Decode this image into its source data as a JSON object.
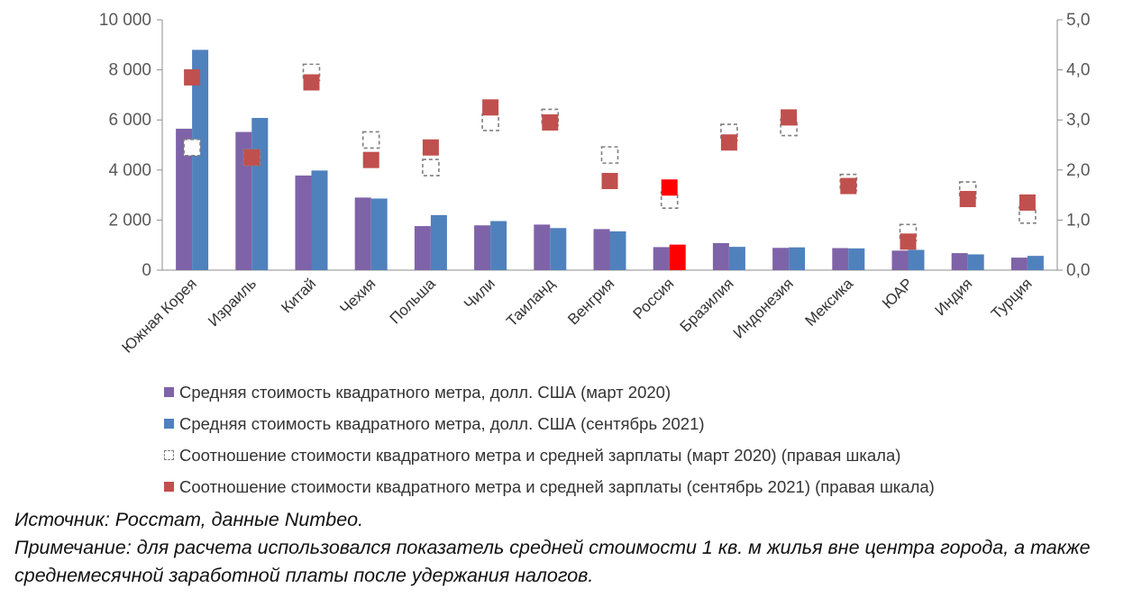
{
  "chart_data": {
    "type": "bar",
    "categories": [
      "Южная Корея",
      "Израиль",
      "Китай",
      "Чехия",
      "Польша",
      "Чили",
      "Таиланд",
      "Венгрия",
      "Россия",
      "Бразилия",
      "Индонезия",
      "Мексика",
      "ЮАР",
      "Индия",
      "Турция"
    ],
    "series": [
      {
        "name": "Средняя стоимость квадратного метра, долл. США (март 2020)",
        "kind": "bar",
        "axis": "left",
        "color": "#7F63A8",
        "values": [
          5650,
          5520,
          3780,
          2900,
          1760,
          1790,
          1820,
          1640,
          920,
          1080,
          890,
          880,
          780,
          680,
          500
        ]
      },
      {
        "name": "Средняя стоимость квадратного метра, долл. США (сентябрь 2021)",
        "kind": "bar",
        "axis": "left",
        "color": "#4F81BD",
        "values": [
          8800,
          6080,
          3980,
          2860,
          2200,
          1960,
          1680,
          1550,
          1020,
          930,
          910,
          870,
          810,
          630,
          570
        ]
      },
      {
        "name": "Соотношение стоимости квадратного метра и средней зарплаты (март 2020) (правая шкала)",
        "kind": "marker-dashed",
        "axis": "right",
        "color": "#7F7F7F",
        "values": [
          2.45,
          2.25,
          3.95,
          2.6,
          2.05,
          2.95,
          3.05,
          2.3,
          1.4,
          2.75,
          2.85,
          1.75,
          0.75,
          1.6,
          1.1
        ]
      },
      {
        "name": "Соотношение стоимости квадратного метра и средней зарплаты (сентябрь 2021) (правая шкала)",
        "kind": "marker-solid",
        "axis": "right",
        "color": "#C0504D",
        "values": [
          3.85,
          2.25,
          3.75,
          2.2,
          2.45,
          3.25,
          2.95,
          1.78,
          1.65,
          2.55,
          3.05,
          1.68,
          0.57,
          1.42,
          1.35
        ]
      }
    ],
    "highlight": {
      "category": "Россия",
      "color": "#FF0000"
    },
    "ylim_left": [
      0,
      10000
    ],
    "yticks_left": [
      "0",
      "2 000",
      "4 000",
      "6 000",
      "8 000",
      "10 000"
    ],
    "ylim_right": [
      0,
      5
    ],
    "yticks_right": [
      "0,0",
      "1,0",
      "2,0",
      "3,0",
      "4,0",
      "5,0"
    ],
    "title": "",
    "xlabel": "",
    "ylabel": "",
    "grid": false
  },
  "legend": {
    "items": [
      {
        "label": "Средняя стоимость квадратного метра, долл. США (март 2020)",
        "style": "solid",
        "color": "#7F63A8"
      },
      {
        "label": "Средняя стоимость квадратного метра, долл. США (сентябрь 2021)",
        "style": "solid",
        "color": "#4F81BD"
      },
      {
        "label": "Соотношение стоимости квадратного метра и средней зарплаты (март 2020) (правая шкала)",
        "style": "dashed",
        "color": "#7F7F7F"
      },
      {
        "label": "Соотношение стоимости квадратного метра и средней зарплаты (сентябрь 2021) (правая шкала)",
        "style": "solid",
        "color": "#C0504D"
      }
    ]
  },
  "notes": {
    "source": "Источник: Росстат, данные Numbeo.",
    "remark": "Примечание: для расчета использовался показатель средней стоимости 1 кв. м жилья вне центра города, а также среднемесячной заработной платы после удержания налогов."
  }
}
